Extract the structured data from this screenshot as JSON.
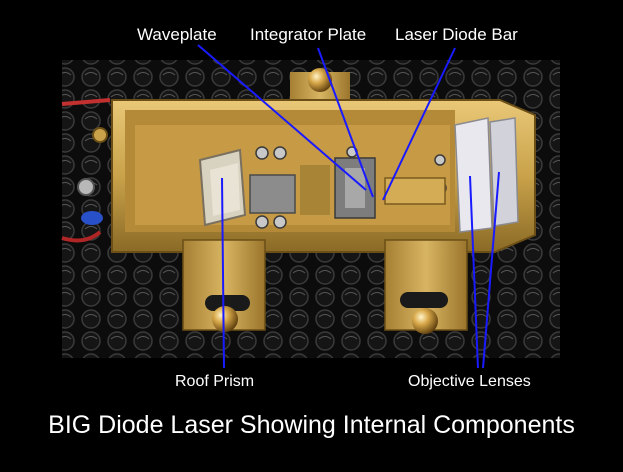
{
  "labels": {
    "waveplate": "Waveplate",
    "integrator_plate": "Integrator Plate",
    "laser_diode_bar": "Laser Diode Bar",
    "roof_prism": "Roof Prism",
    "objective_lenses": "Objective Lenses"
  },
  "caption": "BIG Diode Laser Showing Internal Components",
  "colors": {
    "background": "#000000",
    "text": "#ffffff",
    "pointer_lines": "#1a1aff",
    "housing_gold": "#c9a24a"
  }
}
